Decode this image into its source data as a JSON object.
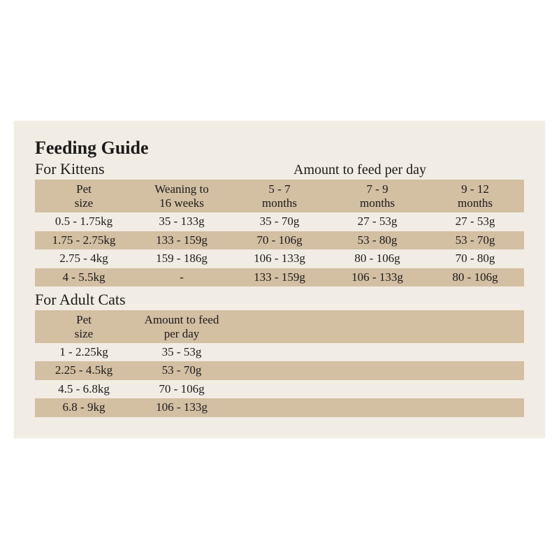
{
  "title": "Feeding Guide",
  "kittens": {
    "section_title": "For Kittens",
    "amount_label": "Amount to feed per day",
    "headers": {
      "pet_size_l1": "Pet",
      "pet_size_l2": "size",
      "weaning_l1": "Weaning to",
      "weaning_l2": "16 weeks",
      "m57_l1": "5 - 7",
      "m57_l2": "months",
      "m79_l1": "7 - 9",
      "m79_l2": "months",
      "m912_l1": "9 - 12",
      "m912_l2": "months"
    },
    "rows": [
      {
        "size": "0.5 - 1.75kg",
        "w": "35 - 133g",
        "m57": "35 - 70g",
        "m79": "27 - 53g",
        "m912": "27 - 53g"
      },
      {
        "size": "1.75 - 2.75kg",
        "w": "133 - 159g",
        "m57": "70 - 106g",
        "m79": "53 - 80g",
        "m912": "53 - 70g"
      },
      {
        "size": "2.75 - 4kg",
        "w": "159 - 186g",
        "m57": "106 - 133g",
        "m79": "80 - 106g",
        "m912": "70 - 80g"
      },
      {
        "size": "4 - 5.5kg",
        "w": "-",
        "m57": "133 - 159g",
        "m79": "106 - 133g",
        "m912": "80 - 106g"
      }
    ]
  },
  "adults": {
    "section_title": "For Adult Cats",
    "headers": {
      "pet_size_l1": "Pet",
      "pet_size_l2": "size",
      "amount_l1": "Amount to feed",
      "amount_l2": "per day"
    },
    "rows": [
      {
        "size": "1 - 2.25kg",
        "amt": "35 - 53g"
      },
      {
        "size": "2.25 - 4.5kg",
        "amt": "53 - 70g"
      },
      {
        "size": "4.5 - 6.8kg",
        "amt": "70 - 106g"
      },
      {
        "size": "6.8 - 9kg",
        "amt": "106 - 133g"
      }
    ]
  },
  "colors": {
    "paper_bg": "#f2ede4",
    "row_dark": "#d3bfa2",
    "text": "#1a1a1a",
    "page_bg": "#ffffff"
  },
  "typography": {
    "title_fontsize": 26,
    "section_fontsize": 22,
    "body_fontsize": 17,
    "font_family": "Georgia, serif"
  }
}
